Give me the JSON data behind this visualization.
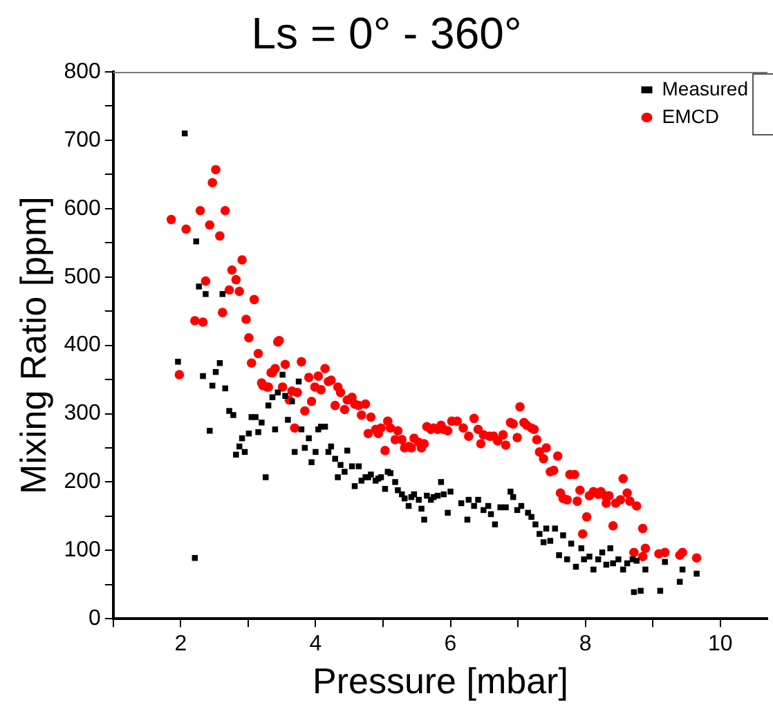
{
  "chart_data": {
    "type": "scatter",
    "title": "Ls = 0° - 360°",
    "xlabel": "Pressure [mbar]",
    "ylabel": "Mixing Ratio [ppm]",
    "xlim": [
      1,
      10.7
    ],
    "xticks": [
      {
        "value": 1,
        "label": null
      },
      2,
      {
        "value": 3,
        "label": null
      },
      4,
      {
        "value": 5,
        "label": null
      },
      6,
      {
        "value": 7,
        "label": null
      },
      8,
      {
        "value": 9,
        "label": null
      },
      10
    ],
    "ylim": [
      0,
      800
    ],
    "yticks": [
      0,
      {
        "value": 50,
        "label": null
      },
      100,
      {
        "value": 150,
        "label": null
      },
      200,
      {
        "value": 250,
        "label": null
      },
      300,
      {
        "value": 350,
        "label": null
      },
      400,
      {
        "value": 450,
        "label": null
      },
      500,
      {
        "value": 550,
        "label": null
      },
      600,
      {
        "value": 650,
        "label": null
      },
      700,
      {
        "value": 750,
        "label": null
      },
      800
    ],
    "grid": false,
    "legend": "top right",
    "series": [
      {
        "name": "Measured",
        "color": "#000000",
        "marker": "square",
        "x": [
          2.06,
          2.23,
          2.27,
          2.37,
          2.62,
          1.96,
          2.33,
          2.52,
          2.58,
          2.47,
          2.66,
          2.43,
          2.21,
          2.72,
          2.78,
          2.82,
          2.87,
          2.91,
          2.95,
          3.01,
          3.05,
          3.11,
          3.15,
          3.2,
          3.26,
          3.3,
          3.36,
          3.4,
          3.44,
          3.51,
          3.55,
          3.59,
          3.65,
          3.69,
          3.75,
          3.79,
          3.84,
          3.9,
          3.94,
          4.0,
          4.04,
          4.08,
          4.14,
          4.19,
          4.23,
          4.29,
          4.33,
          4.37,
          4.43,
          4.47,
          4.54,
          4.58,
          4.64,
          4.68,
          4.74,
          4.78,
          4.82,
          4.89,
          4.93,
          4.97,
          5.03,
          5.07,
          5.11,
          5.18,
          5.22,
          5.28,
          5.32,
          5.38,
          5.42,
          5.46,
          5.53,
          5.57,
          5.61,
          5.65,
          5.71,
          5.75,
          5.81,
          5.86,
          5.9,
          5.96,
          6.0,
          6.16,
          6.25,
          6.27,
          6.35,
          6.41,
          6.49,
          6.56,
          6.6,
          6.66,
          6.74,
          6.82,
          6.89,
          6.93,
          6.99,
          7.05,
          7.15,
          7.2,
          7.26,
          7.32,
          7.38,
          7.42,
          7.48,
          7.55,
          7.61,
          7.67,
          7.73,
          7.79,
          7.86,
          7.94,
          7.98,
          8.06,
          8.12,
          8.19,
          8.25,
          8.31,
          8.37,
          8.41,
          8.49,
          8.56,
          8.62,
          8.7,
          8.72,
          8.76,
          8.82,
          8.89,
          9.11,
          9.18,
          9.4,
          9.44,
          9.65
        ],
        "values": [
          710,
          552,
          486,
          475,
          475,
          376,
          355,
          361,
          374,
          341,
          337,
          275,
          89,
          304,
          298,
          240,
          252,
          264,
          244,
          271,
          295,
          295,
          273,
          287,
          207,
          312,
          324,
          277,
          331,
          357,
          326,
          291,
          318,
          244,
          347,
          277,
          250,
          264,
          229,
          244,
          277,
          281,
          281,
          244,
          252,
          234,
          207,
          225,
          215,
          246,
          223,
          194,
          223,
          202,
          207,
          207,
          211,
          202,
          205,
          207,
          190,
          215,
          213,
          200,
          188,
          182,
          176,
          165,
          178,
          182,
          174,
          161,
          145,
          180,
          174,
          178,
          180,
          200,
          182,
          155,
          186,
          169,
          145,
          174,
          165,
          174,
          159,
          165,
          153,
          138,
          163,
          163,
          186,
          178,
          159,
          165,
          155,
          149,
          138,
          124,
          112,
          132,
          114,
          132,
          93,
          122,
          87,
          110,
          76,
          103,
          87,
          91,
          72,
          87,
          97,
          79,
          103,
          81,
          87,
          72,
          81,
          87,
          39,
          85,
          41,
          72,
          41,
          83,
          54,
          72,
          66
        ]
      },
      {
        "name": "EMCD",
        "color": "#ff0000",
        "marker": "circle",
        "x": [
          1.86,
          2.08,
          2.29,
          2.43,
          2.47,
          2.52,
          2.58,
          2.66,
          2.37,
          2.21,
          2.33,
          2.62,
          2.72,
          2.76,
          2.82,
          2.87,
          2.91,
          2.97,
          3.09,
          3.01,
          3.15,
          3.05,
          3.46,
          1.98,
          3.2,
          3.28,
          3.36,
          3.4,
          3.55,
          3.51,
          3.79,
          3.44,
          3.34,
          3.22,
          3.3,
          3.61,
          3.65,
          3.69,
          3.73,
          3.84,
          3.9,
          3.94,
          3.99,
          4.04,
          4.08,
          4.14,
          4.19,
          4.23,
          4.29,
          4.33,
          4.37,
          4.43,
          4.47,
          4.54,
          4.58,
          4.64,
          4.68,
          4.74,
          4.78,
          4.82,
          4.89,
          4.93,
          4.97,
          5.03,
          5.07,
          5.11,
          5.18,
          5.22,
          5.28,
          5.32,
          5.38,
          5.42,
          5.46,
          5.53,
          5.57,
          5.61,
          5.65,
          5.71,
          5.75,
          5.81,
          5.86,
          5.9,
          5.96,
          6.02,
          6.1,
          6.19,
          6.27,
          6.35,
          6.41,
          6.45,
          6.49,
          6.58,
          6.64,
          6.7,
          6.78,
          6.82,
          6.89,
          6.93,
          6.99,
          7.03,
          7.09,
          7.13,
          7.2,
          7.24,
          7.28,
          7.32,
          7.38,
          7.42,
          7.48,
          7.53,
          7.59,
          7.63,
          7.67,
          7.73,
          7.77,
          7.84,
          7.88,
          7.92,
          7.96,
          8.02,
          8.06,
          8.12,
          8.19,
          8.23,
          8.29,
          8.31,
          8.35,
          8.41,
          8.45,
          8.52,
          8.56,
          8.62,
          8.66,
          8.72,
          8.76,
          8.85,
          8.89,
          8.85,
          9.09,
          9.18,
          9.4,
          9.44,
          9.65
        ],
        "values": [
          584,
          570,
          597,
          576,
          638,
          657,
          560,
          597,
          494,
          436,
          434,
          448,
          481,
          510,
          496,
          479,
          525,
          438,
          467,
          411,
          388,
          374,
          407,
          357,
          345,
          339,
          360,
          366,
          372,
          339,
          376,
          405,
          360,
          341,
          339,
          320,
          333,
          279,
          331,
          304,
          353,
          318,
          339,
          355,
          335,
          366,
          347,
          349,
          312,
          339,
          331,
          306,
          320,
          324,
          314,
          312,
          298,
          314,
          271,
          295,
          277,
          271,
          279,
          246,
          289,
          279,
          262,
          275,
          262,
          250,
          252,
          250,
          264,
          258,
          250,
          256,
          281,
          277,
          279,
          277,
          283,
          277,
          275,
          289,
          289,
          279,
          267,
          293,
          277,
          256,
          269,
          267,
          267,
          260,
          269,
          254,
          287,
          285,
          265,
          310,
          287,
          283,
          279,
          277,
          262,
          244,
          234,
          250,
          215,
          217,
          238,
          184,
          176,
          174,
          211,
          211,
          172,
          188,
          124,
          149,
          180,
          186,
          182,
          186,
          180,
          169,
          180,
          136,
          169,
          174,
          205,
          184,
          172,
          97,
          165,
          132,
          103,
          91,
          95,
          97,
          93,
          97,
          89
        ]
      }
    ]
  }
}
